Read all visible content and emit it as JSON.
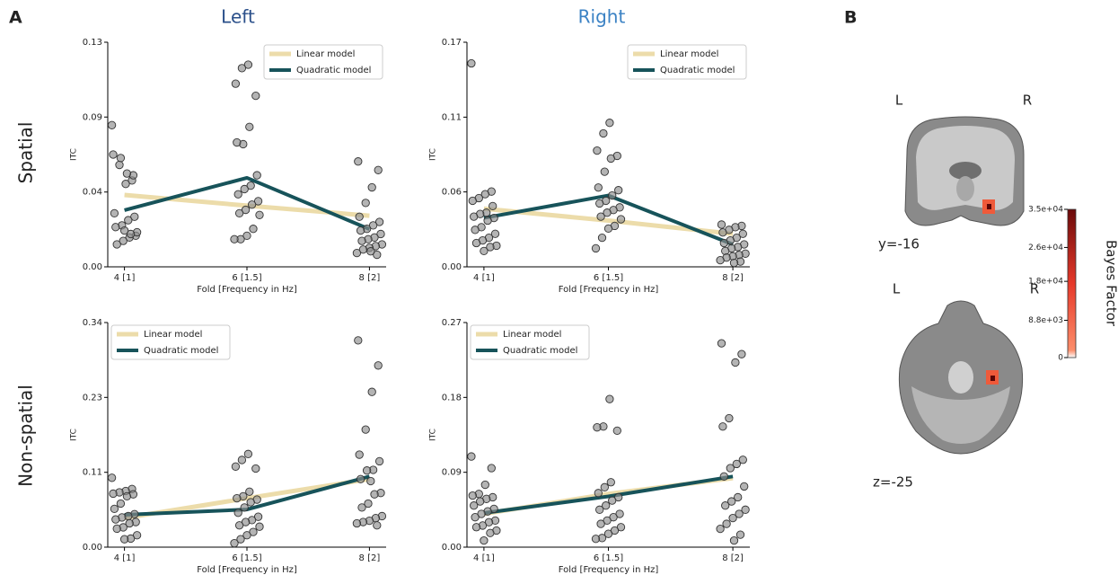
{
  "panel_labels": {
    "a": "A",
    "b": "B"
  },
  "column_titles": [
    "Left",
    "Right"
  ],
  "row_labels": [
    "Spatial",
    "Non-spatial"
  ],
  "chart_data": [
    {
      "type": "scatter-line",
      "categories": [
        "4 [1]",
        "6 [1.5]",
        "8 [2]"
      ],
      "xlabel": "Fold [Frequency in Hz]",
      "ylabel": "ITC",
      "ylim": [
        0,
        0.13
      ],
      "yticks": [
        {
          "value": 0,
          "label": "0.00"
        },
        {
          "value": 0.0433,
          "label": "0.04"
        },
        {
          "value": 0.0867,
          "label": "0.09"
        },
        0.13
      ],
      "legend": "upper right",
      "points": {
        "color": "#8c8c8c",
        "values": [
          [
            0.082,
            0.05,
            0.048,
            0.059,
            0.065,
            0.053,
            0.054,
            0.063,
            0.031,
            0.029,
            0.027,
            0.024,
            0.023,
            0.018,
            0.017,
            0.015,
            0.013,
            0.02,
            0.019,
            0.021
          ],
          [
            0.117,
            0.115,
            0.106,
            0.099,
            0.081,
            0.071,
            0.072,
            0.053,
            0.047,
            0.045,
            0.042,
            0.038,
            0.036,
            0.033,
            0.031,
            0.03,
            0.022,
            0.018,
            0.016,
            0.016
          ],
          [
            0.061,
            0.056,
            0.046,
            0.037,
            0.029,
            0.026,
            0.024,
            0.022,
            0.021,
            0.019,
            0.017,
            0.016,
            0.015,
            0.013,
            0.012,
            0.011,
            0.01,
            0.008,
            0.007,
            0.009
          ]
        ]
      },
      "series": [
        {
          "name": "Linear model",
          "color": "#ecdcaa",
          "values": [
            0.0416,
            0.0354,
            0.0296
          ]
        },
        {
          "name": "Quadratic model",
          "color": "#17535a",
          "values": [
            0.0328,
            0.0515,
            0.0218
          ]
        }
      ]
    },
    {
      "type": "scatter-line",
      "categories": [
        "4 [1]",
        "6 [1.5]",
        "8 [2]"
      ],
      "xlabel": "Fold [Frequency in Hz]",
      "ylabel": "ITC",
      "ylim": [
        0,
        0.17
      ],
      "yticks": [
        {
          "value": 0,
          "label": "0.00"
        },
        {
          "value": 0.0567,
          "label": "0.06"
        },
        {
          "value": 0.1133,
          "label": "0.11"
        },
        0.17
      ],
      "legend": "upper right",
      "points": {
        "color": "#8c8c8c",
        "values": [
          [
            0.154,
            0.057,
            0.055,
            0.052,
            0.05,
            0.046,
            0.041,
            0.04,
            0.038,
            0.037,
            0.035,
            0.03,
            0.028,
            0.025,
            0.022,
            0.02,
            0.018,
            0.016,
            0.015,
            0.012
          ],
          [
            0.109,
            0.101,
            0.088,
            0.084,
            0.082,
            0.072,
            0.06,
            0.058,
            0.054,
            0.05,
            0.048,
            0.045,
            0.043,
            0.041,
            0.038,
            0.036,
            0.031,
            0.029,
            0.022,
            0.014
          ],
          [
            0.032,
            0.031,
            0.03,
            0.028,
            0.026,
            0.025,
            0.022,
            0.02,
            0.018,
            0.017,
            0.015,
            0.014,
            0.012,
            0.01,
            0.009,
            0.008,
            0.007,
            0.005,
            0.004,
            0.003
          ]
        ]
      },
      "series": [
        {
          "name": "Linear model",
          "color": "#ecdcaa",
          "values": [
            0.044,
            0.035,
            0.025
          ]
        },
        {
          "name": "Quadratic model",
          "color": "#17535a",
          "values": [
            0.037,
            0.054,
            0.017
          ]
        }
      ]
    },
    {
      "type": "scatter-line",
      "categories": [
        "4 [1]",
        "6 [1.5]",
        "8 [2]"
      ],
      "xlabel": "Fold [Frequency in Hz]",
      "ylabel": "ITC",
      "ylim": [
        0,
        0.34
      ],
      "yticks": [
        {
          "value": 0,
          "label": "0.00"
        },
        {
          "value": 0.1133,
          "label": "0.11"
        },
        {
          "value": 0.2267,
          "label": "0.23"
        },
        0.34
      ],
      "legend": "upper left",
      "points": {
        "color": "#8c8c8c",
        "values": [
          [
            0.105,
            0.088,
            0.085,
            0.083,
            0.081,
            0.08,
            0.077,
            0.066,
            0.058,
            0.05,
            0.047,
            0.045,
            0.042,
            0.038,
            0.036,
            0.03,
            0.028,
            0.018,
            0.013,
            0.012
          ],
          [
            0.141,
            0.132,
            0.122,
            0.119,
            0.084,
            0.077,
            0.074,
            0.072,
            0.068,
            0.06,
            0.052,
            0.046,
            0.041,
            0.038,
            0.033,
            0.031,
            0.023,
            0.018,
            0.012,
            0.006
          ],
          [
            0.313,
            0.275,
            0.235,
            0.178,
            0.14,
            0.13,
            0.117,
            0.116,
            0.103,
            0.082,
            0.08,
            0.066,
            0.06,
            0.047,
            0.044,
            0.04,
            0.038,
            0.036,
            0.033,
            0.1
          ]
        ]
      },
      "series": [
        {
          "name": "Linear model",
          "color": "#ecdcaa",
          "values": [
            0.044,
            0.074,
            0.103
          ]
        },
        {
          "name": "Quadratic model",
          "color": "#17535a",
          "values": [
            0.049,
            0.057,
            0.107
          ]
        }
      ]
    },
    {
      "type": "scatter-line",
      "categories": [
        "4 [1]",
        "6 [1.5]",
        "8 [2]"
      ],
      "xlabel": "Fold [Frequency in Hz]",
      "ylabel": "ITC",
      "ylim": [
        0,
        0.27
      ],
      "yticks": [
        {
          "value": 0,
          "label": "0.00"
        },
        0.09,
        0.18,
        0.27
      ],
      "legend": "upper left",
      "points": {
        "color": "#8c8c8c",
        "values": [
          [
            0.109,
            0.095,
            0.075,
            0.064,
            0.062,
            0.06,
            0.058,
            0.055,
            0.05,
            0.046,
            0.043,
            0.04,
            0.036,
            0.032,
            0.03,
            0.026,
            0.024,
            0.02,
            0.017,
            0.008
          ],
          [
            0.178,
            0.145,
            0.144,
            0.14,
            0.078,
            0.072,
            0.065,
            0.06,
            0.056,
            0.05,
            0.045,
            0.04,
            0.036,
            0.032,
            0.028,
            0.024,
            0.02,
            0.016,
            0.011,
            0.01
          ],
          [
            0.245,
            0.232,
            0.222,
            0.155,
            0.145,
            0.105,
            0.1,
            0.095,
            0.085,
            0.073,
            0.06,
            0.055,
            0.05,
            0.045,
            0.04,
            0.035,
            0.028,
            0.022,
            0.015,
            0.008
          ]
        ]
      },
      "series": [
        {
          "name": "Linear model",
          "color": "#ecdcaa",
          "values": [
            0.04,
            0.064,
            0.083
          ]
        },
        {
          "name": "Quadratic model",
          "color": "#17535a",
          "values": [
            0.041,
            0.061,
            0.085
          ]
        }
      ]
    }
  ],
  "brain": {
    "coronal": {
      "left": "L",
      "right": "R",
      "slice": "y=-16"
    },
    "axial": {
      "left": "L",
      "right": "R",
      "slice": "z=-25"
    },
    "colorbar": {
      "label": "Bayes Factor",
      "lim": [
        0,
        35000
      ],
      "ticks": [
        0,
        {
          "value": 8800,
          "label": "8.8e+03"
        },
        {
          "value": 18000,
          "label": "1.8e+04"
        },
        {
          "value": 26000,
          "label": "2.6e+04"
        },
        {
          "value": 35000,
          "label": "3.5e+04"
        }
      ]
    }
  }
}
